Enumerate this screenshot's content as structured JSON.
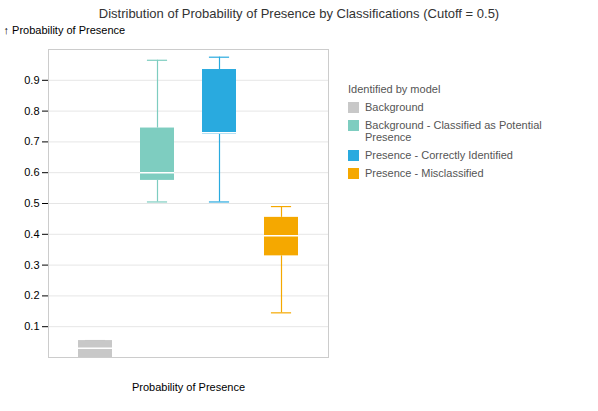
{
  "chart_data": {
    "type": "box",
    "title": "Distribution of Probability of Presence by Classifications (Cutoff = 0.5)",
    "xlabel": "Probability of Presence",
    "ylabel": "Probability of Presence",
    "ylim": [
      0.0,
      1.0
    ],
    "yticks": [
      0.1,
      0.2,
      0.3,
      0.4,
      0.5,
      0.6,
      0.7,
      0.8,
      0.9
    ],
    "grid": true,
    "tick_labels": "y",
    "legend": "right",
    "legend_title": "Identified by model",
    "series": [
      {
        "name": "Background",
        "color": "#c8c8c8",
        "whisker_color": "#aaaaaa",
        "q1": 0.0,
        "median": 0.03,
        "q3": 0.055,
        "whisker_low": 0.0,
        "whisker_high": 0.055
      },
      {
        "name": "Background - Classified as Potential Presence",
        "color": "#7ecdc0",
        "whisker_color": "#7ecdc0",
        "q1": 0.575,
        "median": 0.6,
        "q3": 0.745,
        "whisker_low": 0.505,
        "whisker_high": 0.965
      },
      {
        "name": "Presence - Correctly Identified",
        "color": "#29aadf",
        "whisker_color": "#29aadf",
        "q1": 0.725,
        "median": 0.73,
        "q3": 0.935,
        "whisker_low": 0.505,
        "whisker_high": 0.975
      },
      {
        "name": "Presence - Misclassified",
        "color": "#f5a800",
        "whisker_color": "#f5a800",
        "q1": 0.33,
        "median": 0.395,
        "q3": 0.455,
        "whisker_low": 0.145,
        "whisker_high": 0.49
      }
    ]
  }
}
